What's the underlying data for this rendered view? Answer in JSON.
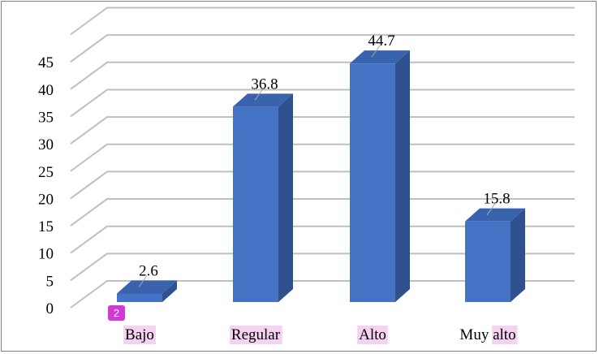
{
  "chart_data": {
    "type": "bar",
    "style": "3d-column",
    "categories": [
      "Bajo",
      "Regular",
      "Alto",
      "Muy alto"
    ],
    "values": [
      2.6,
      36.8,
      44.7,
      15.8
    ],
    "data_labels": [
      "2.6",
      "36.8",
      "44.7",
      "15.8"
    ],
    "y_ticks": [
      "0",
      "5",
      "10",
      "15",
      "20",
      "25",
      "30",
      "35",
      "40",
      "45"
    ],
    "ylim": [
      0,
      50
    ],
    "title": "",
    "xlabel": "",
    "ylabel": "",
    "grid": true,
    "legend": "none",
    "colors": {
      "bar_front": "#4472c4",
      "bar_side": "#2f528f",
      "bar_top": "#3a63ad",
      "grid": "#bfbfbf",
      "highlight": "#f6d2f2",
      "badge": "#d23ad6"
    }
  },
  "annotations": {
    "badge_text": "2",
    "highlighted_categories": [
      "Bajo",
      "Regular",
      "Alto",
      "alto"
    ]
  }
}
